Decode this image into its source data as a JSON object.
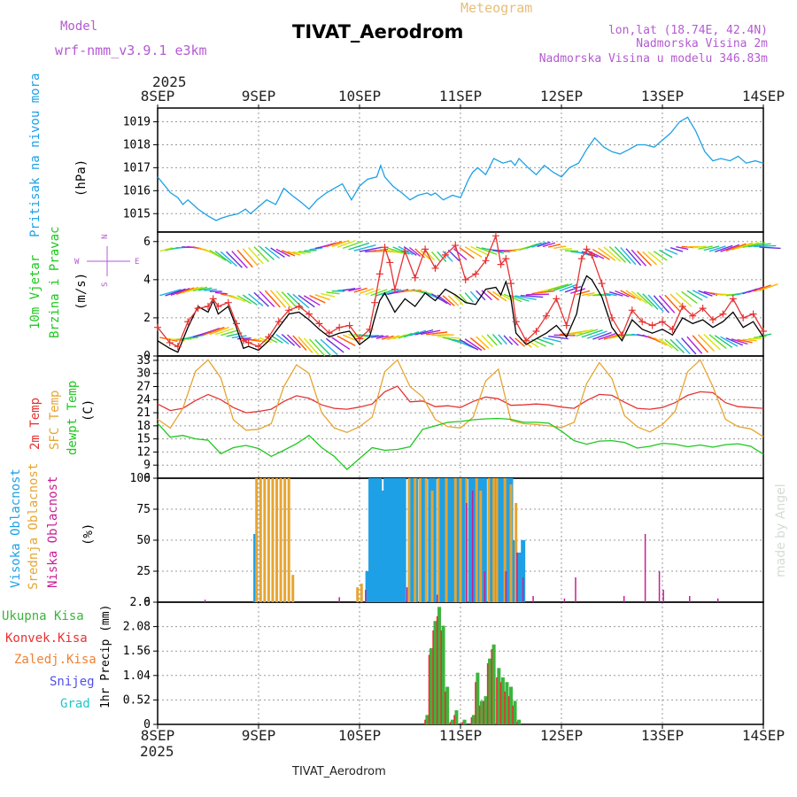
{
  "header": {
    "model_label": "Model",
    "model_name": "wrf-nmm_v3.9.1 e3km",
    "meteogram_label": "Meteogram",
    "station": "TIVAT_Aerodrom",
    "lonlat": "lon,lat (18.74E, 42.4N)",
    "elevation": "Nadmorska Visina 2m",
    "model_elevation": "Nadmorska Visina u modelu 346.83m"
  },
  "footer": {
    "station": "TIVAT_Aerodrom",
    "credit": "made by Angel"
  },
  "time_axis": {
    "year": "2025",
    "labels": [
      "8SEP",
      "9SEP",
      "10SEP",
      "11SEP",
      "12SEP",
      "13SEP",
      "14SEP"
    ],
    "days": 6
  },
  "colors": {
    "pressure": "#1ea0e6",
    "wind_speed": "#000000",
    "wind_gust": "#e63232",
    "temp2m": "#e63232",
    "sfc_temp": "#e6a532",
    "dewpt": "#1ec81e",
    "high_cloud": "#1ea0e6",
    "mid_cloud": "#e6a532",
    "low_cloud": "#c81e96",
    "total_precip": "#3cb43c",
    "conv_precip": "#e63232",
    "frozen_precip": "#f08232",
    "snow": "#5050e6",
    "hail": "#1ec8c8"
  },
  "chart_data": [
    {
      "id": "pressure",
      "type": "line",
      "title": "Pritisak na nivou mora",
      "ylabel": "(hPa)",
      "ylim": [
        1014.2,
        1019.6
      ],
      "yticks": [
        1015,
        1016,
        1017,
        1018,
        1019
      ],
      "x_unit": "days since 8SEP 00UTC",
      "x": [
        0,
        0.13,
        0.2,
        0.25,
        0.3,
        0.35,
        0.4,
        0.5,
        0.58,
        0.63,
        0.7,
        0.8,
        0.87,
        0.92,
        1.0,
        1.08,
        1.17,
        1.25,
        1.33,
        1.42,
        1.5,
        1.58,
        1.67,
        1.75,
        1.83,
        1.92,
        2.0,
        2.08,
        2.17,
        2.21,
        2.25,
        2.33,
        2.42,
        2.5,
        2.58,
        2.67,
        2.71,
        2.75,
        2.83,
        2.92,
        3.0,
        3.08,
        3.12,
        3.17,
        3.25,
        3.33,
        3.42,
        3.5,
        3.54,
        3.58,
        3.67,
        3.75,
        3.83,
        3.92,
        4.0,
        4.08,
        4.17,
        4.25,
        4.33,
        4.42,
        4.5,
        4.58,
        4.67,
        4.75,
        4.83,
        4.92,
        5.0,
        5.08,
        5.17,
        5.25,
        5.33,
        5.42,
        5.5,
        5.58,
        5.67,
        5.75,
        5.83,
        5.92,
        6.0
      ],
      "values": [
        1016.6,
        1015.9,
        1015.7,
        1015.4,
        1015.6,
        1015.4,
        1015.2,
        1014.9,
        1014.7,
        1014.8,
        1014.9,
        1015.0,
        1015.2,
        1015.0,
        1015.3,
        1015.6,
        1015.4,
        1016.1,
        1015.8,
        1015.5,
        1015.2,
        1015.6,
        1015.9,
        1016.1,
        1016.3,
        1015.6,
        1016.2,
        1016.5,
        1016.6,
        1017.1,
        1016.6,
        1016.2,
        1015.9,
        1015.6,
        1015.8,
        1015.9,
        1015.8,
        1015.9,
        1015.6,
        1015.8,
        1015.7,
        1016.5,
        1016.8,
        1017.0,
        1016.7,
        1017.4,
        1017.2,
        1017.3,
        1017.1,
        1017.4,
        1017.0,
        1016.7,
        1017.1,
        1016.8,
        1016.6,
        1017.0,
        1017.2,
        1017.8,
        1018.3,
        1017.9,
        1017.7,
        1017.6,
        1017.8,
        1018.0,
        1018.0,
        1017.9,
        1018.2,
        1018.5,
        1019.0,
        1019.2,
        1018.6,
        1017.7,
        1017.3,
        1017.4,
        1017.3,
        1017.5,
        1017.2,
        1017.3,
        1017.2
      ]
    },
    {
      "id": "wind",
      "type": "line",
      "title": "10m Vjetar",
      "subtitle": "Brzina i Pravac",
      "ylabel": "(m/s)",
      "compass": [
        "N",
        "E",
        "S",
        "W"
      ],
      "ylim": [
        0,
        6.5
      ],
      "yticks": [
        0,
        2,
        4,
        6
      ],
      "x": [
        0,
        0.12,
        0.2,
        0.3,
        0.4,
        0.5,
        0.55,
        0.6,
        0.7,
        0.78,
        0.85,
        0.9,
        1.0,
        1.1,
        1.2,
        1.3,
        1.4,
        1.5,
        1.6,
        1.7,
        1.8,
        1.9,
        2.0,
        2.1,
        2.15,
        2.2,
        2.25,
        2.3,
        2.35,
        2.45,
        2.55,
        2.65,
        2.75,
        2.85,
        2.95,
        3.05,
        3.15,
        3.25,
        3.35,
        3.4,
        3.45,
        3.5,
        3.55,
        3.65,
        3.75,
        3.85,
        3.95,
        4.05,
        4.15,
        4.2,
        4.25,
        4.3,
        4.4,
        4.5,
        4.6,
        4.7,
        4.8,
        4.9,
        5.0,
        5.1,
        5.2,
        5.3,
        5.4,
        5.5,
        5.6,
        5.7,
        5.8,
        5.9,
        6.0
      ],
      "series": [
        {
          "name": "speed",
          "values": [
            0.8,
            0.4,
            0.2,
            1.5,
            2.6,
            2.3,
            2.9,
            2.2,
            2.6,
            1.5,
            0.4,
            0.5,
            0.3,
            0.8,
            1.5,
            2.2,
            2.3,
            1.9,
            1.4,
            1.0,
            1.2,
            1.3,
            0.6,
            1.0,
            2.0,
            2.9,
            3.3,
            2.8,
            2.3,
            3.0,
            2.6,
            3.3,
            2.9,
            3.5,
            3.2,
            2.8,
            2.7,
            3.5,
            3.6,
            3.2,
            3.9,
            3.0,
            1.2,
            0.6,
            0.9,
            1.2,
            1.6,
            1.0,
            2.2,
            3.6,
            4.2,
            4.0,
            3.1,
            1.5,
            0.8,
            1.9,
            1.4,
            1.2,
            1.4,
            1.1,
            2.0,
            1.7,
            1.9,
            1.5,
            1.8,
            2.3,
            1.5,
            1.8,
            1.0
          ]
        },
        {
          "name": "gust",
          "values": [
            1.5,
            0.7,
            0.5,
            1.8,
            2.5,
            2.6,
            3.0,
            2.6,
            2.8,
            1.7,
            0.8,
            0.7,
            0.5,
            1.0,
            1.8,
            2.4,
            2.6,
            2.2,
            1.7,
            1.2,
            1.5,
            1.6,
            0.9,
            1.4,
            2.8,
            4.3,
            5.7,
            4.9,
            3.5,
            5.5,
            4.1,
            5.6,
            4.6,
            5.3,
            5.8,
            4.0,
            4.3,
            5.0,
            6.3,
            4.8,
            5.1,
            3.8,
            1.8,
            0.8,
            1.3,
            2.1,
            3.0,
            1.6,
            3.6,
            5.1,
            5.6,
            5.3,
            3.8,
            2.0,
            1.1,
            2.4,
            1.8,
            1.6,
            1.8,
            1.4,
            2.6,
            2.1,
            2.5,
            1.9,
            2.2,
            3.0,
            2.0,
            2.2,
            1.3
          ]
        }
      ],
      "arrow_rows": [
        1.0,
        3.3,
        5.6
      ]
    },
    {
      "id": "temperature",
      "type": "line",
      "titles": [
        "2m Temp",
        "SFC Temp",
        "dewpt Temp"
      ],
      "ylabel": "(C)",
      "ylim": [
        6,
        34
      ],
      "yticks": [
        6,
        9,
        12,
        15,
        18,
        21,
        24,
        27,
        30,
        33
      ],
      "x": [
        0,
        0.125,
        0.25,
        0.375,
        0.5,
        0.625,
        0.75,
        0.875,
        1,
        1.125,
        1.25,
        1.375,
        1.5,
        1.625,
        1.75,
        1.875,
        2,
        2.125,
        2.25,
        2.375,
        2.5,
        2.625,
        2.75,
        2.875,
        3,
        3.125,
        3.25,
        3.375,
        3.5,
        3.625,
        3.75,
        3.875,
        4,
        4.125,
        4.25,
        4.375,
        4.5,
        4.625,
        4.75,
        4.875,
        5,
        5.125,
        5.25,
        5.375,
        5.5,
        5.625,
        5.75,
        5.875,
        6
      ],
      "series": [
        {
          "name": "2m Temp",
          "values": [
            23,
            21.5,
            22,
            23.8,
            25.2,
            24,
            22.2,
            21,
            21.3,
            21.8,
            23.6,
            24.9,
            24.3,
            22.8,
            22,
            21.8,
            22.3,
            23,
            25.8,
            27.1,
            23.5,
            23.7,
            22.4,
            22.6,
            22.2,
            23.6,
            24.6,
            24.2,
            22.7,
            22.8,
            23,
            22.8,
            22.3,
            22,
            23.8,
            25.2,
            25,
            23.4,
            22,
            21.8,
            22.2,
            23.3,
            25,
            25.8,
            25.6,
            23.3,
            22.4,
            22.2,
            22
          ]
        },
        {
          "name": "SFC Temp",
          "values": [
            19.5,
            17.5,
            22,
            30.5,
            33.1,
            29,
            19.4,
            17,
            17.2,
            18.5,
            27,
            32,
            30,
            21,
            17.5,
            16.5,
            17.8,
            20,
            30.4,
            33.1,
            27,
            24.6,
            19.5,
            17.8,
            17.5,
            20,
            28.3,
            31,
            19.2,
            18.5,
            18.3,
            18,
            17.6,
            18.8,
            27.7,
            32.5,
            28.8,
            20.3,
            17.8,
            16.6,
            18.3,
            21.3,
            30.4,
            33.1,
            27,
            19.5,
            17.8,
            17.3,
            15.5
          ]
        },
        {
          "name": "dewpt Temp",
          "values": [
            18.6,
            15.4,
            15.8,
            15,
            14.7,
            11.6,
            13,
            13.5,
            12.8,
            11,
            12.4,
            13.9,
            15.8,
            13,
            11,
            8,
            10.5,
            13,
            12.4,
            12.6,
            13.2,
            17.2,
            18,
            18.8,
            19,
            19.4,
            19.6,
            19.7,
            19.5,
            18.8,
            18.8,
            18.6,
            16.8,
            14.6,
            13.8,
            14.5,
            14.6,
            14.2,
            12.9,
            13.3,
            14,
            13.8,
            13.2,
            13.6,
            13.1,
            13.7,
            13.9,
            13.3,
            11.5
          ]
        }
      ]
    },
    {
      "id": "clouds",
      "type": "bar",
      "titles": [
        "Visoka Oblacnost",
        "Srednja Oblacnost",
        "Niska Oblacnost"
      ],
      "ylabel": "(%)",
      "ylim": [
        0,
        100
      ],
      "yticks": [
        0,
        25,
        50,
        75,
        100
      ],
      "series": [
        {
          "name": "Visoka Oblacnost",
          "x": [
            0.97,
            2.08,
            2.11,
            2.14,
            2.17,
            2.2,
            2.23,
            2.26,
            2.29,
            2.32,
            2.35,
            2.38,
            2.41,
            2.44,
            2.5,
            2.53,
            2.56,
            2.62,
            2.65,
            2.7,
            2.74,
            2.8,
            2.83,
            2.89,
            2.92,
            2.98,
            3.01,
            3.04,
            3.1,
            3.13,
            3.18,
            3.21,
            3.24,
            3.3,
            3.34,
            3.38,
            3.42,
            3.46,
            3.5,
            3.54,
            3.58,
            3.62
          ],
          "values": [
            55,
            25,
            100,
            100,
            100,
            100,
            90,
            100,
            100,
            100,
            100,
            100,
            100,
            100,
            100,
            100,
            100,
            100,
            100,
            100,
            100,
            100,
            100,
            100,
            100,
            100,
            100,
            100,
            100,
            100,
            100,
            100,
            100,
            100,
            100,
            100,
            100,
            100,
            100,
            50,
            40,
            50
          ]
        },
        {
          "name": "Srednja Oblacnost",
          "x": [
            0.98,
            1.02,
            1.06,
            1.1,
            1.14,
            1.18,
            1.22,
            1.26,
            1.3,
            1.34,
            1.98,
            2.02,
            2.49,
            2.55,
            2.6,
            2.66,
            2.72,
            2.78,
            2.86,
            2.95,
            3.0,
            3.06,
            3.16,
            3.2,
            3.28,
            3.33,
            3.36,
            3.44,
            3.5,
            3.55
          ],
          "values": [
            100,
            100,
            100,
            100,
            100,
            100,
            100,
            100,
            100,
            22,
            12,
            15,
            100,
            100,
            100,
            100,
            90,
            100,
            100,
            100,
            100,
            100,
            100,
            90,
            100,
            100,
            100,
            100,
            95,
            80
          ]
        },
        {
          "name": "Niska Oblacnost",
          "x": [
            0.47,
            1.8,
            2.06,
            2.47,
            2.77,
            3.06,
            3.12,
            3.24,
            3.45,
            3.56,
            3.62,
            3.72,
            4.03,
            4.14,
            4.62,
            4.83,
            4.97,
            5.01,
            5.27,
            5.55
          ],
          "values": [
            2,
            4,
            10,
            12,
            6,
            80,
            90,
            25,
            25,
            40,
            20,
            5,
            3,
            20,
            5,
            55,
            25,
            10,
            5,
            3
          ]
        }
      ]
    },
    {
      "id": "precip",
      "type": "bar",
      "titles": [
        "Ukupna Kisa",
        "Konvek.Kisa",
        "Zaledj.Kisa",
        "Snijeg",
        "Grad"
      ],
      "ylabel": "1hr Precip (mm)",
      "ylim": [
        0,
        2.6
      ],
      "yticks": [
        0,
        0.52,
        1.04,
        1.56,
        2.08,
        2.6
      ],
      "x": [
        2.67,
        2.71,
        2.75,
        2.79,
        2.83,
        2.87,
        2.92,
        2.96,
        3.04,
        3.13,
        3.17,
        3.21,
        3.25,
        3.29,
        3.33,
        3.38,
        3.42,
        3.46,
        3.5,
        3.54,
        3.58
      ],
      "series": [
        {
          "name": "Ukupna Kisa",
          "values": [
            0.2,
            1.62,
            2.2,
            2.5,
            2.1,
            0.8,
            0.1,
            0.3,
            0.1,
            0.2,
            1.1,
            0.5,
            0.6,
            1.4,
            1.7,
            1.2,
            1.0,
            0.9,
            0.8,
            0.5,
            0.1
          ]
        },
        {
          "name": "Konvek.Kisa",
          "values": [
            0.1,
            1.48,
            2.0,
            2.3,
            2.0,
            0.7,
            0.05,
            0.2,
            0.05,
            0.15,
            0.9,
            0.4,
            0.5,
            1.3,
            1.6,
            1.0,
            0.9,
            0.7,
            0.6,
            0.4,
            0.05
          ]
        },
        {
          "name": "Zaledj.Kisa",
          "values": [
            0,
            0,
            0,
            0,
            0,
            0,
            0,
            0,
            0,
            0,
            0,
            0,
            0,
            0,
            0,
            0,
            0,
            0,
            0,
            0,
            0
          ]
        },
        {
          "name": "Snijeg",
          "values": [
            0,
            0,
            0,
            0,
            0,
            0,
            0,
            0,
            0,
            0,
            0,
            0,
            0,
            0,
            0,
            0,
            0,
            0,
            0,
            0,
            0
          ]
        },
        {
          "name": "Grad",
          "values": [
            0,
            0,
            0,
            0,
            0,
            0,
            0,
            0,
            0,
            0,
            0,
            0,
            0,
            0,
            0,
            0,
            0,
            0,
            0,
            0,
            0
          ]
        }
      ]
    }
  ]
}
